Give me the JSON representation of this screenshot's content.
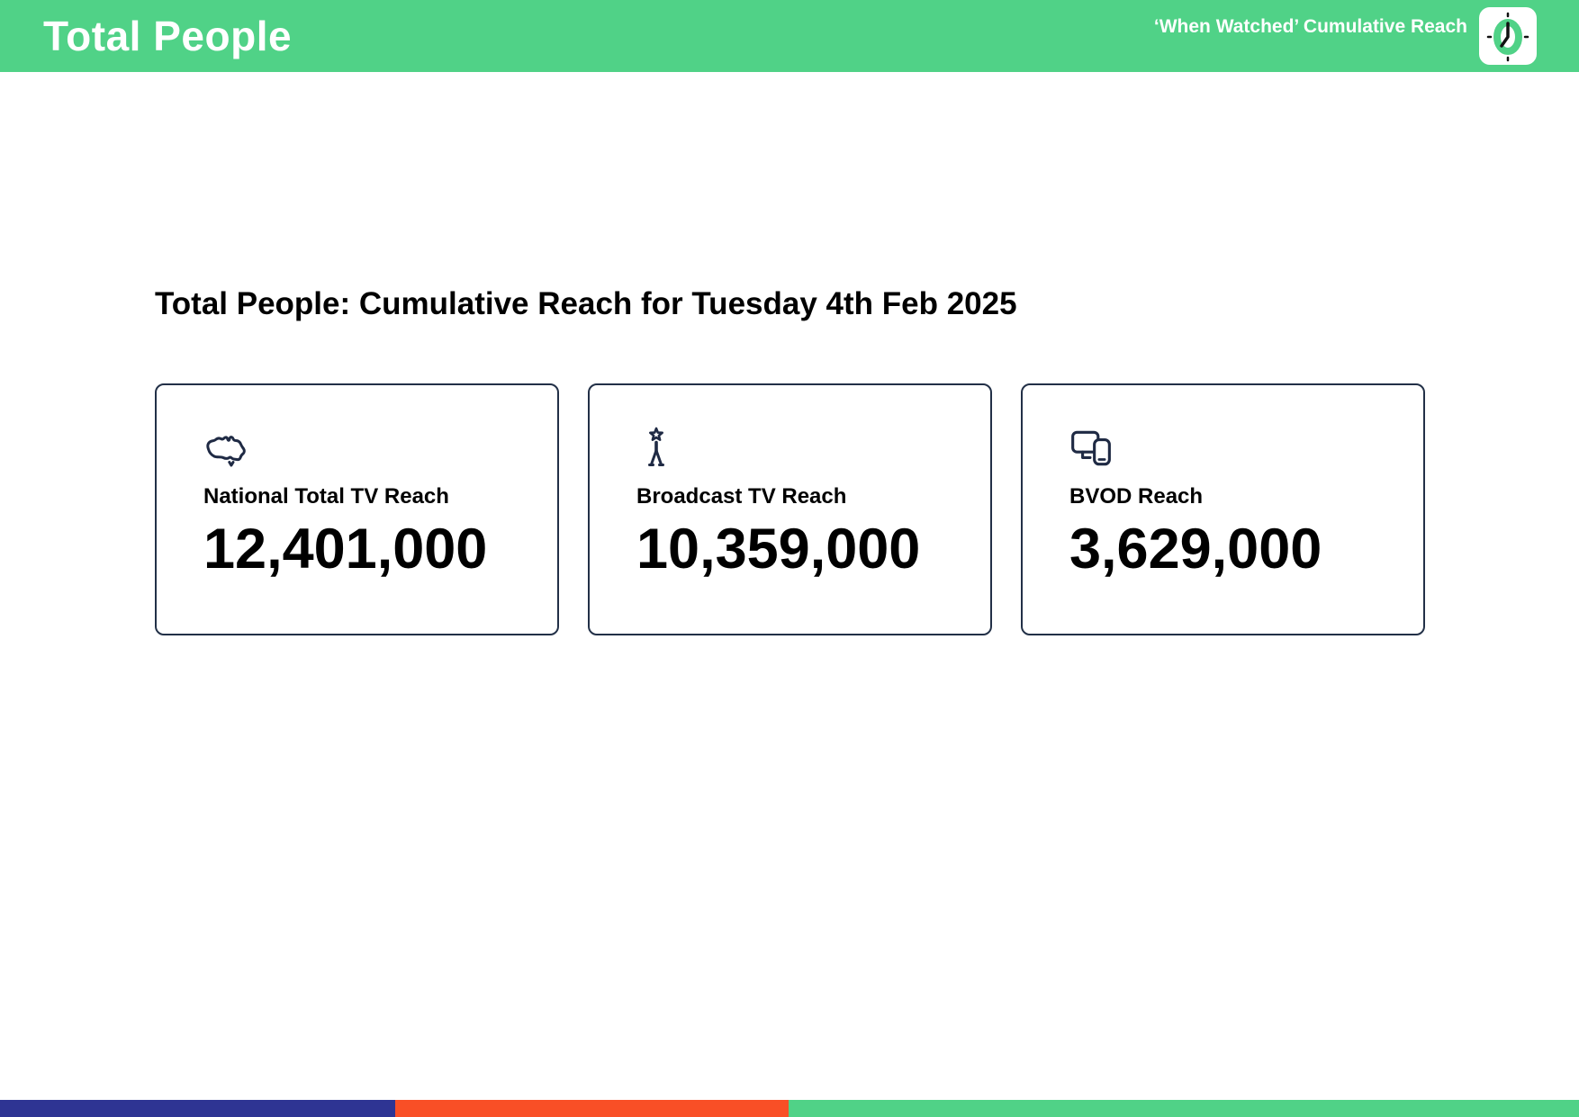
{
  "header": {
    "title": "Total People",
    "subtitle": "‘When Watched’ Cumulative Reach"
  },
  "main": {
    "heading": "Total People: Cumulative Reach for Tuesday 4th Feb 2025",
    "cards": [
      {
        "icon": "australia-map-icon",
        "label": "National Total TV Reach",
        "value": "12,401,000"
      },
      {
        "icon": "broadcast-tower-icon",
        "label": "Broadcast TV Reach",
        "value": "10,359,000"
      },
      {
        "icon": "devices-icon",
        "label": "BVOD Reach",
        "value": "3,629,000"
      }
    ]
  },
  "footer": {
    "segments": [
      {
        "name": "blue",
        "color": "#2e3493",
        "width_pct": 25.03
      },
      {
        "name": "orange",
        "color": "#f94f26",
        "width_pct": 24.91
      },
      {
        "name": "green",
        "color": "#50d287",
        "width_pct": 50.06
      }
    ]
  },
  "colors": {
    "header_bg": "#50d287",
    "card_border": "#223047",
    "icon_navy": "#1f2a44",
    "text_black": "#000000",
    "header_text": "#ffffff"
  }
}
